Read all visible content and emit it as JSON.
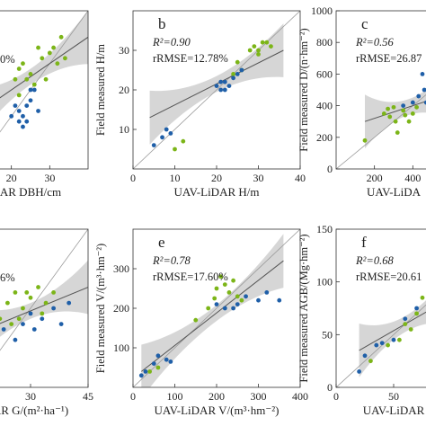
{
  "figure": {
    "panels": [
      {
        "id": "a",
        "letter": "",
        "r2_text": "",
        "rrmse_text": "0%",
        "xlabel": "AR DBH/cm",
        "ylabel": "",
        "xticks": [
          20,
          30
        ],
        "yticks": []
      },
      {
        "id": "b",
        "letter": "b",
        "r2_text": "R²=0.90",
        "rrmse_text": "rRMSE=12.78%",
        "xlabel": "UAV-LiDAR H/m",
        "ylabel": "Field measured H/m",
        "xticks": [
          0,
          10,
          20,
          30,
          40
        ],
        "yticks": [
          10,
          20,
          30
        ]
      },
      {
        "id": "c",
        "letter": "c",
        "r2_text": "R²=0.56",
        "rrmse_text": "rRMSE=26.87",
        "xlabel": "UAV-LiDA",
        "ylabel": "Field measured D/(n·hm⁻²)",
        "xticks": [
          200,
          400
        ],
        "yticks": [
          0,
          200,
          400,
          600,
          800,
          1000
        ]
      },
      {
        "id": "d",
        "letter": "",
        "r2_text": "",
        "rrmse_text": "6%",
        "xlabel": "AR G/(m²·ha⁻¹)",
        "ylabel": "",
        "xticks": [
          30,
          45
        ],
        "yticks": []
      },
      {
        "id": "e",
        "letter": "e",
        "r2_text": "R²=0.78",
        "rrmse_text": "rRMSE=17.60%",
        "xlabel": "UAV-LiDAR V/(m³·hm⁻²)",
        "ylabel": "Field measured V/(m³·hm⁻²)",
        "xticks": [
          0,
          100,
          200,
          300,
          400
        ],
        "yticks": [
          100,
          200,
          300
        ]
      },
      {
        "id": "f",
        "letter": "f",
        "r2_text": "R²=0.68",
        "rrmse_text": "rRMSE=20.61",
        "xlabel": "UAV-LiDAR",
        "ylabel": "Field measured AGB/(Mg·hm⁻²)",
        "xticks": [
          0,
          50
        ],
        "yticks": [
          0,
          50,
          100,
          150
        ]
      }
    ]
  },
  "colors": {
    "green": "#7cb518",
    "blue": "#1f5fa8",
    "band": "#c8c8c8",
    "fit": "#555555",
    "oneToOne": "#9a9a9a"
  },
  "chart_data": [
    {
      "type": "scatter",
      "panel": "a",
      "xlim": [
        10,
        40
      ],
      "ylim": [
        10,
        40
      ],
      "fit": [
        [
          10,
          20
        ],
        [
          40,
          35
        ]
      ],
      "series": [
        {
          "color": "green",
          "points": [
            [
              21,
              27
            ],
            [
              22,
              29
            ],
            [
              23,
              30
            ],
            [
              24,
              27
            ],
            [
              25,
              28
            ],
            [
              26,
              26
            ],
            [
              28,
              31
            ],
            [
              30,
              32
            ],
            [
              31,
              33
            ],
            [
              32,
              30
            ],
            [
              33,
              35
            ],
            [
              34,
              31
            ],
            [
              22,
              24
            ],
            [
              27,
              33
            ],
            [
              29,
              27
            ]
          ]
        },
        {
          "color": "blue",
          "points": [
            [
              20,
              20
            ],
            [
              21,
              22
            ],
            [
              22,
              21
            ],
            [
              23,
              20
            ],
            [
              24,
              22
            ],
            [
              25,
              23
            ],
            [
              26,
              25
            ],
            [
              24,
              19
            ],
            [
              27,
              21
            ],
            [
              23,
              18
            ],
            [
              25,
              25
            ],
            [
              22,
              19
            ]
          ]
        }
      ]
    },
    {
      "type": "scatter",
      "panel": "b",
      "xlim": [
        0,
        40
      ],
      "ylim": [
        0,
        40
      ],
      "fit": [
        [
          4,
          13
        ],
        [
          36,
          30
        ]
      ],
      "series": [
        {
          "color": "green",
          "points": [
            [
              10,
              5
            ],
            [
              12,
              7
            ],
            [
              24,
              24
            ],
            [
              25,
              27
            ],
            [
              26,
              25
            ],
            [
              28,
              30
            ],
            [
              29,
              31
            ],
            [
              30,
              29
            ],
            [
              31,
              32
            ],
            [
              33,
              31
            ],
            [
              30,
              30
            ],
            [
              32,
              32
            ]
          ]
        },
        {
          "color": "blue",
          "points": [
            [
              5,
              6
            ],
            [
              7,
              8
            ],
            [
              8,
              10
            ],
            [
              9,
              9
            ],
            [
              20,
              21
            ],
            [
              21,
              20
            ],
            [
              22,
              22
            ],
            [
              23,
              21
            ],
            [
              24,
              23
            ],
            [
              25,
              24
            ],
            [
              21,
              22
            ],
            [
              22,
              20
            ],
            [
              26,
              25
            ]
          ]
        }
      ]
    },
    {
      "type": "scatter",
      "panel": "c",
      "xlim": [
        0,
        600
      ],
      "ylim": [
        0,
        1000
      ],
      "fit": [
        [
          150,
          300
        ],
        [
          600,
          480
        ]
      ],
      "series": [
        {
          "color": "green",
          "points": [
            [
              150,
              180
            ],
            [
              250,
              350
            ],
            [
              280,
              330
            ],
            [
              300,
              390
            ],
            [
              320,
              230
            ],
            [
              350,
              370
            ],
            [
              380,
              300
            ],
            [
              400,
              350
            ],
            [
              420,
              390
            ],
            [
              270,
              380
            ],
            [
              310,
              300
            ],
            [
              360,
              340
            ]
          ]
        },
        {
          "color": "blue",
          "points": [
            [
              350,
              400
            ],
            [
              400,
              420
            ],
            [
              450,
              600
            ],
            [
              470,
              420
            ],
            [
              480,
              360
            ],
            [
              500,
              450
            ],
            [
              430,
              460
            ],
            [
              520,
              480
            ],
            [
              460,
              500
            ],
            [
              490,
              410
            ]
          ]
        }
      ]
    },
    {
      "type": "scatter",
      "panel": "d",
      "xlim": [
        15,
        45
      ],
      "ylim": [
        15,
        45
      ],
      "fit": [
        [
          15,
          25
        ],
        [
          45,
          34
        ]
      ],
      "series": [
        {
          "color": "green",
          "points": [
            [
              22,
              28
            ],
            [
              24,
              31
            ],
            [
              26,
              33
            ],
            [
              28,
              30
            ],
            [
              30,
              32
            ],
            [
              32,
              34
            ],
            [
              34,
              31
            ],
            [
              36,
              33
            ],
            [
              27,
              28
            ],
            [
              25,
              27
            ],
            [
              29,
              33
            ],
            [
              33,
              29
            ]
          ]
        },
        {
          "color": "blue",
          "points": [
            [
              17,
              23
            ],
            [
              19,
              25
            ],
            [
              21,
              22
            ],
            [
              23,
              26
            ],
            [
              26,
              24
            ],
            [
              28,
              27
            ],
            [
              30,
              29
            ],
            [
              33,
              28
            ],
            [
              36,
              30
            ],
            [
              38,
              27
            ],
            [
              40,
              31
            ],
            [
              31,
              26
            ]
          ]
        }
      ]
    },
    {
      "type": "scatter",
      "panel": "e",
      "xlim": [
        0,
        400
      ],
      "ylim": [
        0,
        400
      ],
      "fit": [
        [
          20,
          40
        ],
        [
          360,
          320
        ]
      ],
      "series": [
        {
          "color": "green",
          "points": [
            [
              40,
              40
            ],
            [
              60,
              50
            ],
            [
              150,
              170
            ],
            [
              180,
              200
            ],
            [
              200,
              250
            ],
            [
              210,
              280
            ],
            [
              220,
              260
            ],
            [
              230,
              240
            ],
            [
              240,
              270
            ],
            [
              250,
              230
            ],
            [
              260,
              220
            ],
            [
              195,
              225
            ]
          ]
        },
        {
          "color": "blue",
          "points": [
            [
              20,
              30
            ],
            [
              30,
              40
            ],
            [
              50,
              60
            ],
            [
              60,
              80
            ],
            [
              80,
              70
            ],
            [
              90,
              65
            ],
            [
              200,
              210
            ],
            [
              220,
              200
            ],
            [
              250,
              210
            ],
            [
              270,
              230
            ],
            [
              300,
              220
            ],
            [
              320,
              240
            ],
            [
              350,
              220
            ],
            [
              240,
              200
            ]
          ]
        }
      ]
    },
    {
      "type": "scatter",
      "panel": "f",
      "xlim": [
        0,
        100
      ],
      "ylim": [
        0,
        150
      ],
      "fit": [
        [
          20,
          35
        ],
        [
          100,
          85
        ]
      ],
      "series": [
        {
          "color": "green",
          "points": [
            [
              30,
              25
            ],
            [
              45,
              40
            ],
            [
              55,
              45
            ],
            [
              60,
              60
            ],
            [
              65,
              55
            ],
            [
              70,
              70
            ],
            [
              75,
              85
            ],
            [
              80,
              80
            ],
            [
              85,
              95
            ],
            [
              90,
              90
            ]
          ]
        },
        {
          "color": "blue",
          "points": [
            [
              20,
              15
            ],
            [
              25,
              30
            ],
            [
              35,
              40
            ],
            [
              40,
              42
            ],
            [
              50,
              45
            ],
            [
              60,
              65
            ],
            [
              70,
              75
            ],
            [
              80,
              70
            ],
            [
              90,
              80
            ],
            [
              95,
              92
            ]
          ]
        }
      ]
    }
  ]
}
